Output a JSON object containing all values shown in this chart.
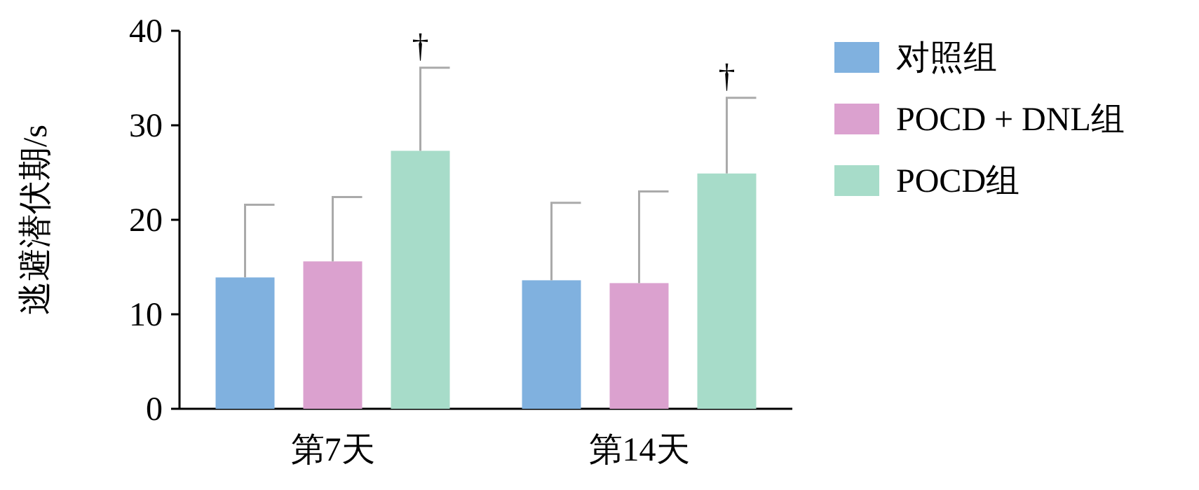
{
  "chart_data": {
    "type": "bar",
    "ylabel": "逃避潜伏期/s",
    "categories": [
      "第7天",
      "第14天"
    ],
    "ylim": [
      0,
      40
    ],
    "yticks": [
      0,
      10,
      20,
      30,
      40
    ],
    "grid": false,
    "legend": "right",
    "series": [
      {
        "name": "对照组",
        "color": "#80b1df",
        "values": [
          13.9,
          13.6
        ],
        "errors": [
          [
            13.9,
            21.6
          ],
          [
            13.6,
            21.8
          ]
        ]
      },
      {
        "name": "POCD + DNL组",
        "color": "#dba1cf",
        "values": [
          15.6,
          13.3
        ],
        "errors": [
          [
            15.6,
            22.4
          ],
          [
            13.3,
            23.0
          ]
        ]
      },
      {
        "name": "POCD组",
        "color": "#a7dcc9",
        "values": [
          27.3,
          24.9
        ],
        "errors": [
          [
            27.3,
            36.1
          ],
          [
            24.9,
            32.9
          ]
        ]
      }
    ],
    "annotations": [
      "†",
      "†"
    ]
  }
}
